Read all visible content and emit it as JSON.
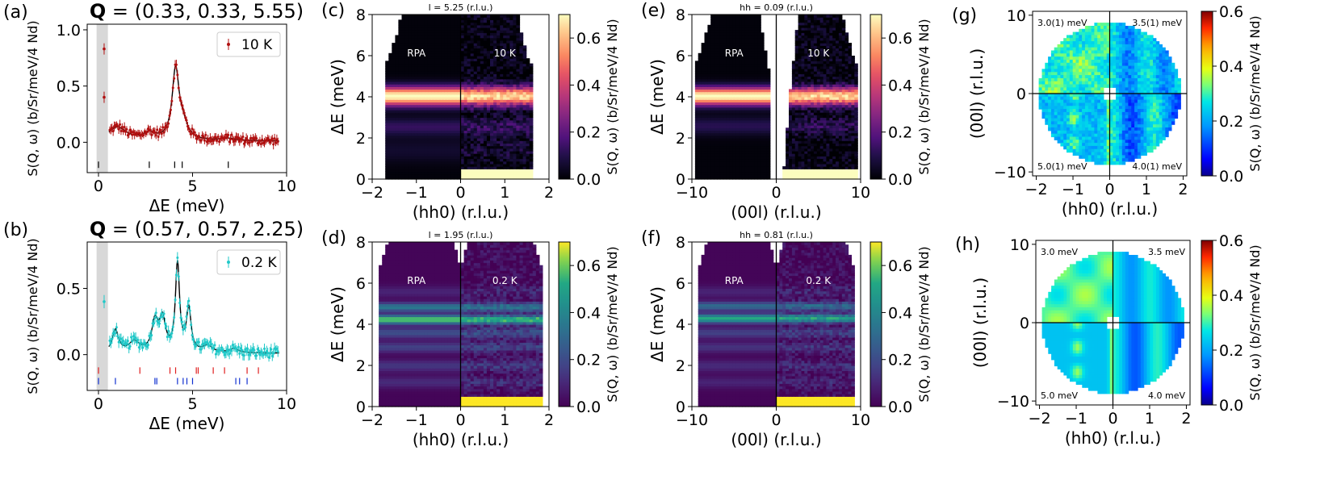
{
  "figure": {
    "description_panels": [
      "a",
      "b",
      "c",
      "d",
      "e",
      "f",
      "g",
      "h"
    ]
  },
  "colors": {
    "red_data": "#b01010",
    "cyan_data": "#20c8c8",
    "fit_line": "#000000",
    "shade": "#d8d8d8",
    "tick_red": "#e02020",
    "tick_blue": "#1030d0"
  },
  "chart_data": [
    {
      "id": "a",
      "type": "scatter",
      "panel_label": "(a)",
      "title": "Q = (0.33, 0.33, 5.55)",
      "title_bold": "Q",
      "title_rest": " = (0.33, 0.33, 5.55)",
      "xlabel": "ΔE (meV)",
      "ylabel": "S(Q, ω) (b/Sr/meV/4 Nd)",
      "xlim": [
        -0.6,
        10
      ],
      "ylim": [
        -0.27,
        1.05
      ],
      "xticks": [
        0,
        5,
        10
      ],
      "yticks": [
        0.0,
        0.5,
        1.0
      ],
      "xtick_labels": [
        "0",
        "5",
        "10"
      ],
      "ytick_labels": [
        "0.0",
        "0.5",
        "1.0"
      ],
      "legend": "10 K",
      "shade": [
        -0.1,
        0.5
      ],
      "excluded_points": [
        {
          "x": 0.3,
          "y": 0.83
        },
        {
          "x": 0.3,
          "y": 0.4
        }
      ],
      "peaks": [
        {
          "x": 1.0,
          "a": 0.12,
          "w": 0.6
        },
        {
          "x": 2.7,
          "a": 0.06,
          "w": 0.4
        },
        {
          "x": 4.1,
          "a": 0.62,
          "w": 0.22
        },
        {
          "x": 4.5,
          "a": 0.12,
          "w": 0.3
        },
        {
          "x": 6.9,
          "a": 0.02,
          "w": 0.5
        }
      ],
      "baseline": 0.01,
      "mode_ticks": [
        {
          "x": 0.0,
          "color": "black"
        },
        {
          "x": 2.7,
          "color": "black"
        },
        {
          "x": 4.05,
          "color": "black"
        },
        {
          "x": 4.45,
          "color": "black"
        },
        {
          "x": 6.9,
          "color": "black"
        }
      ],
      "tick_y": -0.2
    },
    {
      "id": "b",
      "type": "scatter",
      "panel_label": "(b)",
      "title": "Q = (0.57, 0.57, 2.25)",
      "title_bold": "Q",
      "title_rest": " = (0.57, 0.57, 2.25)",
      "xlabel": "ΔE (meV)",
      "ylabel": "S(Q, ω) (b/Sr/meV/4 Nd)",
      "xlim": [
        -0.6,
        10
      ],
      "ylim": [
        -0.27,
        0.85
      ],
      "xticks": [
        0,
        5,
        10
      ],
      "yticks": [
        0.0,
        0.5
      ],
      "xtick_labels": [
        "0",
        "5",
        "10"
      ],
      "ytick_labels": [
        "0.0",
        "0.5"
      ],
      "legend": "0.2 K",
      "shade": [
        -0.1,
        0.5
      ],
      "excluded_points": [
        {
          "x": 0.3,
          "y": 0.4
        }
      ],
      "peaks": [
        {
          "x": 0.9,
          "a": 0.17,
          "w": 0.2
        },
        {
          "x": 1.9,
          "a": 0.08,
          "w": 0.35
        },
        {
          "x": 3.0,
          "a": 0.22,
          "w": 0.2
        },
        {
          "x": 3.4,
          "a": 0.24,
          "w": 0.2
        },
        {
          "x": 4.2,
          "a": 0.66,
          "w": 0.13
        },
        {
          "x": 4.8,
          "a": 0.32,
          "w": 0.15
        },
        {
          "x": 5.8,
          "a": 0.05,
          "w": 0.3
        },
        {
          "x": 7.2,
          "a": 0.03,
          "w": 0.3
        }
      ],
      "baseline": 0.01,
      "mode_ticks_red": [
        0.0,
        2.2,
        3.8,
        4.1,
        5.2,
        5.3,
        6.1,
        6.7,
        7.9,
        8.5
      ],
      "mode_ticks_blue": [
        0.0,
        0.9,
        3.0,
        3.1,
        4.2,
        4.5,
        4.7,
        5.0,
        7.3,
        7.5,
        7.9
      ],
      "tick_y_red": -0.12,
      "tick_y_blue": -0.2
    },
    {
      "id": "c",
      "type": "heatmap",
      "panel_label": "(c)",
      "header": "l = 5.25 (r.l.u.)",
      "xlabel": "(hh0) (r.l.u.)",
      "ylabel": "ΔE (meV)",
      "colorbar_label": "S(Q, ω) (b/Sr/meV/4 Nd)",
      "colormap": "magma",
      "xlim": [
        -2,
        2
      ],
      "ylim": [
        0,
        8
      ],
      "clim": [
        0,
        0.7
      ],
      "xticks": [
        -2,
        -1,
        0,
        1,
        2
      ],
      "xtick_labels": [
        "−2",
        "−1",
        "0",
        "1",
        "2"
      ],
      "yticks": [
        0,
        2,
        4,
        6,
        8
      ],
      "ytick_labels": [
        "0",
        "2",
        "4",
        "6",
        "8"
      ],
      "cticks": [
        0.0,
        0.2,
        0.4,
        0.6
      ],
      "ctick_labels": [
        "0.0",
        "0.2",
        "0.4",
        "0.6"
      ],
      "left_label": "RPA",
      "right_label": "10 K",
      "bands": [
        {
          "E": 4.05,
          "a": 0.7,
          "w": 0.32
        },
        {
          "E": 2.55,
          "a": 0.12,
          "w": 0.3
        },
        {
          "E": 1.4,
          "a": 0.05,
          "w": 0.4
        }
      ],
      "coverage": "coverage_c"
    },
    {
      "id": "d",
      "type": "heatmap",
      "panel_label": "(d)",
      "header": "l = 1.95 (r.l.u.)",
      "xlabel": "(hh0) (r.l.u.)",
      "ylabel": "ΔE (meV)",
      "colorbar_label": "S(Q, ω) (b/Sr/meV/4 Nd)",
      "colormap": "viridis",
      "xlim": [
        -2,
        2
      ],
      "ylim": [
        0,
        8
      ],
      "clim": [
        0,
        0.7
      ],
      "xticks": [
        -2,
        -1,
        0,
        1,
        2
      ],
      "xtick_labels": [
        "−2",
        "−1",
        "0",
        "1",
        "2"
      ],
      "yticks": [
        0,
        2,
        4,
        6,
        8
      ],
      "ytick_labels": [
        "0",
        "2",
        "4",
        "6",
        "8"
      ],
      "cticks": [
        0.0,
        0.2,
        0.4,
        0.6
      ],
      "ctick_labels": [
        "0.0",
        "0.2",
        "0.4",
        "0.6"
      ],
      "left_label": "RPA",
      "right_label": "0.2 K",
      "bands": [
        {
          "E": 4.25,
          "a": 0.6,
          "w": 0.15
        },
        {
          "E": 4.85,
          "a": 0.35,
          "w": 0.15
        },
        {
          "E": 3.6,
          "a": 0.2,
          "w": 0.18
        },
        {
          "E": 2.9,
          "a": 0.16,
          "w": 0.18
        },
        {
          "E": 2.0,
          "a": 0.13,
          "w": 0.2
        },
        {
          "E": 1.2,
          "a": 0.1,
          "w": 0.2
        },
        {
          "E": 5.6,
          "a": 0.08,
          "w": 0.2
        }
      ],
      "coverage": "coverage_d"
    },
    {
      "id": "e",
      "type": "heatmap",
      "panel_label": "(e)",
      "header": "hh = 0.09 (r.l.u.)",
      "xlabel": "(00l) (r.l.u.)",
      "ylabel": "ΔE (meV)",
      "colorbar_label": "S(Q, ω) (b/Sr/meV/4 Nd)",
      "colormap": "magma",
      "xlim": [
        -10,
        10
      ],
      "ylim": [
        0,
        8
      ],
      "clim": [
        0,
        0.7
      ],
      "xticks": [
        -10,
        0,
        10
      ],
      "xtick_labels": [
        "−10",
        "0",
        "10"
      ],
      "yticks": [
        0,
        2,
        4,
        6,
        8
      ],
      "ytick_labels": [
        "0",
        "2",
        "4",
        "6",
        "8"
      ],
      "cticks": [
        0.0,
        0.2,
        0.4,
        0.6
      ],
      "ctick_labels": [
        "0.0",
        "0.2",
        "0.4",
        "0.6"
      ],
      "left_label": "RPA",
      "right_label": "10 K",
      "bands": [
        {
          "E": 4.05,
          "a": 0.7,
          "w": 0.3
        },
        {
          "E": 2.6,
          "a": 0.1,
          "w": 0.3
        }
      ],
      "coverage": "coverage_e"
    },
    {
      "id": "f",
      "type": "heatmap",
      "panel_label": "(f)",
      "header": "hh = 0.81 (r.l.u.)",
      "xlabel": "(00l) (r.l.u.)",
      "ylabel": "ΔE (meV)",
      "colorbar_label": "S(Q, ω) (b/Sr/meV/4 Nd)",
      "colormap": "viridis",
      "xlim": [
        -10,
        10
      ],
      "ylim": [
        0,
        8
      ],
      "clim": [
        0,
        0.7
      ],
      "xticks": [
        -10,
        0,
        10
      ],
      "xtick_labels": [
        "−10",
        "0",
        "10"
      ],
      "yticks": [
        0,
        2,
        4,
        6,
        8
      ],
      "ytick_labels": [
        "0",
        "2",
        "4",
        "6",
        "8"
      ],
      "cticks": [
        0.0,
        0.2,
        0.4,
        0.6
      ],
      "ctick_labels": [
        "0.0",
        "0.2",
        "0.4",
        "0.6"
      ],
      "left_label": "RPA",
      "right_label": "0.2 K",
      "bands": [
        {
          "E": 4.3,
          "a": 0.52,
          "w": 0.15
        },
        {
          "E": 4.9,
          "a": 0.3,
          "w": 0.15
        },
        {
          "E": 3.6,
          "a": 0.16,
          "w": 0.18
        },
        {
          "E": 2.9,
          "a": 0.12,
          "w": 0.18
        },
        {
          "E": 2.0,
          "a": 0.1,
          "w": 0.2
        },
        {
          "E": 1.2,
          "a": 0.08,
          "w": 0.2
        },
        {
          "E": 5.6,
          "a": 0.08,
          "w": 0.2
        }
      ],
      "coverage": "coverage_f"
    },
    {
      "id": "g",
      "type": "heatmap",
      "panel_label": "(g)",
      "xlabel": "(hh0) (r.l.u.)",
      "ylabel": "(00l) (r.l.u.)",
      "colorbar_label": "S(Q, ω) (b/Sr/meV/4 Nd)",
      "colormap": "jet",
      "xlim": [
        -2.1,
        2.1
      ],
      "ylim": [
        -10.5,
        10.5
      ],
      "clim": [
        0,
        0.6
      ],
      "xticks": [
        -2,
        -1,
        0,
        1,
        2
      ],
      "xtick_labels": [
        "−2",
        "−1",
        "0",
        "1",
        "2"
      ],
      "yticks": [
        -10,
        0,
        10
      ],
      "ytick_labels": [
        "−10",
        "0",
        "10"
      ],
      "cticks": [
        0.0,
        0.2,
        0.4,
        0.6
      ],
      "ctick_labels": [
        "0.0",
        "0.2",
        "0.4",
        "0.6"
      ],
      "quadrant_labels": [
        "3.0(1) meV",
        "3.5(1) meV",
        "5.0(1) meV",
        "4.0(1) meV"
      ],
      "noisy": true
    },
    {
      "id": "h",
      "type": "heatmap",
      "panel_label": "(h)",
      "xlabel": "(hh0) (r.l.u.)",
      "ylabel": "(00l) (r.l.u.)",
      "colorbar_label": "S(Q, ω) (b/Sr/meV/4 Nd)",
      "colormap": "jet",
      "xlim": [
        -2.1,
        2.1
      ],
      "ylim": [
        -10.5,
        10.5
      ],
      "clim": [
        0,
        0.6
      ],
      "xticks": [
        -2,
        -1,
        0,
        1,
        2
      ],
      "xtick_labels": [
        "−2",
        "−1",
        "0",
        "1",
        "2"
      ],
      "yticks": [
        -10,
        0,
        10
      ],
      "ytick_labels": [
        "−10",
        "0",
        "10"
      ],
      "cticks": [
        0.0,
        0.2,
        0.4,
        0.6
      ],
      "ctick_labels": [
        "0.0",
        "0.2",
        "0.4",
        "0.6"
      ],
      "quadrant_labels": [
        "3.0 meV",
        "3.5 meV",
        "5.0 meV",
        "4.0 meV"
      ],
      "noisy": false
    }
  ],
  "coverage_c": {
    "left": [
      [
        0,
        -1.7
      ],
      [
        5.5,
        -1.7
      ],
      [
        6.0,
        -1.62
      ],
      [
        7.0,
        -1.45
      ],
      [
        8.0,
        -1.35
      ]
    ],
    "left_inner": [
      [
        0,
        0
      ],
      [
        8,
        -0.3
      ]
    ],
    "right_inner": [
      [
        0,
        0
      ],
      [
        8,
        0.6
      ]
    ],
    "right": [
      [
        0,
        1.65
      ],
      [
        5.5,
        1.62
      ],
      [
        6.0,
        1.5
      ],
      [
        7.0,
        1.38
      ],
      [
        8.0,
        1.3
      ]
    ]
  },
  "coverage_e": {
    "left": [
      [
        0,
        -9.8
      ],
      [
        5.5,
        -9.8
      ],
      [
        6.0,
        -9.2
      ],
      [
        7.0,
        -8.4
      ],
      [
        8.0,
        -7.6
      ]
    ],
    "left_inner": [
      [
        0,
        -0.8
      ],
      [
        5.0,
        -0.8
      ],
      [
        6.0,
        -1.2
      ],
      [
        8.0,
        -2.0
      ]
    ],
    "right_inner": [
      [
        0,
        0.8
      ],
      [
        5.0,
        1.8
      ],
      [
        6.0,
        2.1
      ],
      [
        8.0,
        2.6
      ]
    ],
    "right": [
      [
        0,
        9.7
      ],
      [
        5.5,
        9.6
      ],
      [
        6.0,
        9.1
      ],
      [
        7.0,
        8.4
      ],
      [
        8.0,
        7.8
      ]
    ]
  }
}
